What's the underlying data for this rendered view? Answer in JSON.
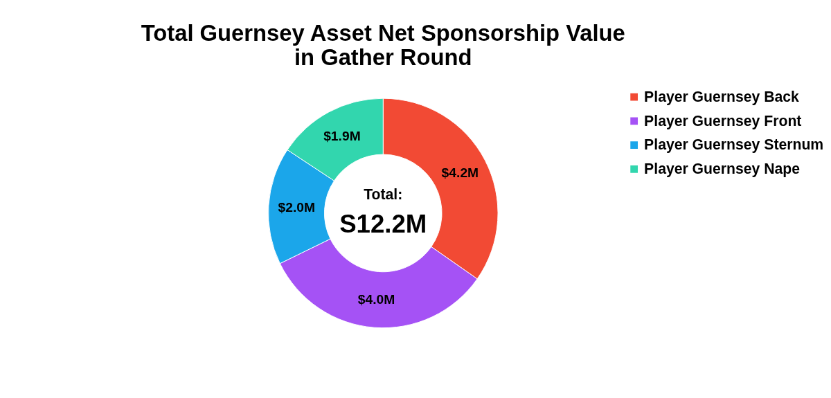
{
  "chart_data": {
    "type": "donut",
    "title": "Total Guernsey Asset Net Sponsorship Value in Gather Round",
    "categories": [
      "Player Guernsey Back",
      "Player Guernsey Front",
      "Player Guernsey Sternum",
      "Player Guernsey Nape"
    ],
    "values": [
      4.2,
      4.0,
      2.0,
      1.9
    ],
    "colors": [
      "#f24a34",
      "#a552f5",
      "#1ba6ea",
      "#32d6ae"
    ],
    "value_labels": [
      "$4.2M",
      "$4.0M",
      "$2.0M",
      "$1.9M"
    ],
    "annotations": [
      "Total:",
      "S12.2M"
    ],
    "legend": "right"
  }
}
